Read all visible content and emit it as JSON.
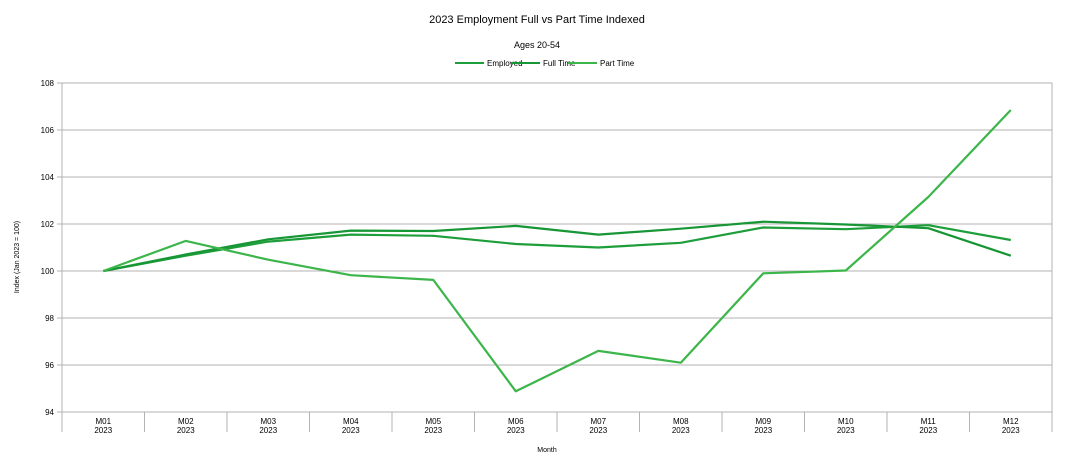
{
  "chart_data": {
    "type": "line",
    "title": "2023 Employment Full vs Part Time Indexed",
    "subtitle": "Ages 20-54",
    "xlabel": "Month",
    "ylabel": "Index (Jan 2023 = 100)",
    "categories": [
      {
        "month": "M01",
        "year": "2023"
      },
      {
        "month": "M02",
        "year": "2023"
      },
      {
        "month": "M03",
        "year": "2023"
      },
      {
        "month": "M04",
        "year": "2023"
      },
      {
        "month": "M05",
        "year": "2023"
      },
      {
        "month": "M06",
        "year": "2023"
      },
      {
        "month": "M07",
        "year": "2023"
      },
      {
        "month": "M08",
        "year": "2023"
      },
      {
        "month": "M09",
        "year": "2023"
      },
      {
        "month": "M10",
        "year": "2023"
      },
      {
        "month": "M11",
        "year": "2023"
      },
      {
        "month": "M12",
        "year": "2023"
      }
    ],
    "ylim": [
      94,
      108
    ],
    "yticks": [
      94,
      96,
      98,
      100,
      102,
      104,
      106,
      108
    ],
    "grid": true,
    "legend_position": "top-center",
    "series": [
      {
        "name": "Employed",
        "color": "#1e9e3a",
        "values": [
          100.0,
          100.65,
          101.25,
          101.55,
          101.5,
          101.15,
          101.0,
          101.2,
          101.85,
          101.78,
          101.95,
          101.32
        ]
      },
      {
        "name": "Full Time",
        "color": "#179635",
        "values": [
          100.0,
          100.7,
          101.35,
          101.72,
          101.7,
          101.92,
          101.55,
          101.8,
          102.1,
          101.98,
          101.82,
          100.65
        ]
      },
      {
        "name": "Part Time",
        "color": "#3cb54a",
        "values": [
          100.0,
          101.28,
          100.48,
          99.82,
          99.62,
          94.88,
          96.6,
          96.1,
          99.9,
          100.02,
          103.15,
          106.85
        ]
      }
    ]
  }
}
